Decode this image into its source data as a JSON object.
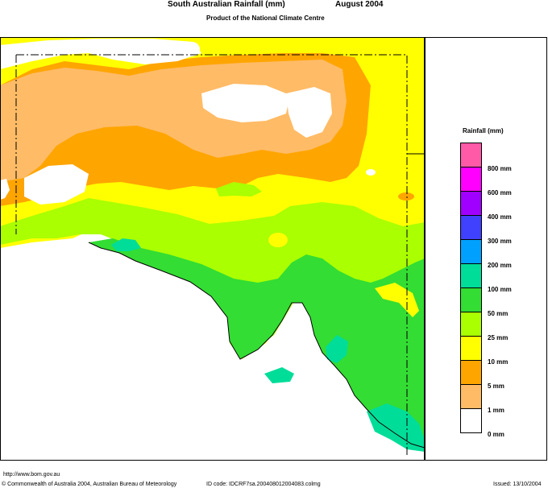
{
  "header": {
    "title": "South Australian Rainfall (mm)",
    "period": "August 2004",
    "subtitle": "Product of the National Climate Centre"
  },
  "legend": {
    "title": "Rainfall (mm)",
    "items": [
      {
        "label": "800 mm",
        "color": "#ff5aa8"
      },
      {
        "label": "600 mm",
        "color": "#ff00ff"
      },
      {
        "label": "400 mm",
        "color": "#a000ff"
      },
      {
        "label": "300 mm",
        "color": "#4040ff"
      },
      {
        "label": "200 mm",
        "color": "#00a0ff"
      },
      {
        "label": "100 mm",
        "color": "#00dd99"
      },
      {
        "label": "50 mm",
        "color": "#33dd33"
      },
      {
        "label": "25 mm",
        "color": "#aaff00"
      },
      {
        "label": "10 mm",
        "color": "#ffff00"
      },
      {
        "label": "5 mm",
        "color": "#ffa500"
      },
      {
        "label": "1 mm",
        "color": "#ffbb66"
      },
      {
        "label": "0 mm",
        "color": "#ffffff"
      }
    ]
  },
  "footer": {
    "url": "http://www.bom.gov.au",
    "copyright": "© Commonwealth of Australia 2004, Australian Bureau of Meteorology",
    "id_code": "ID code: IDCRF7sa.200408012004083.colmg",
    "issued": "Issued: 13/10/2004"
  }
}
